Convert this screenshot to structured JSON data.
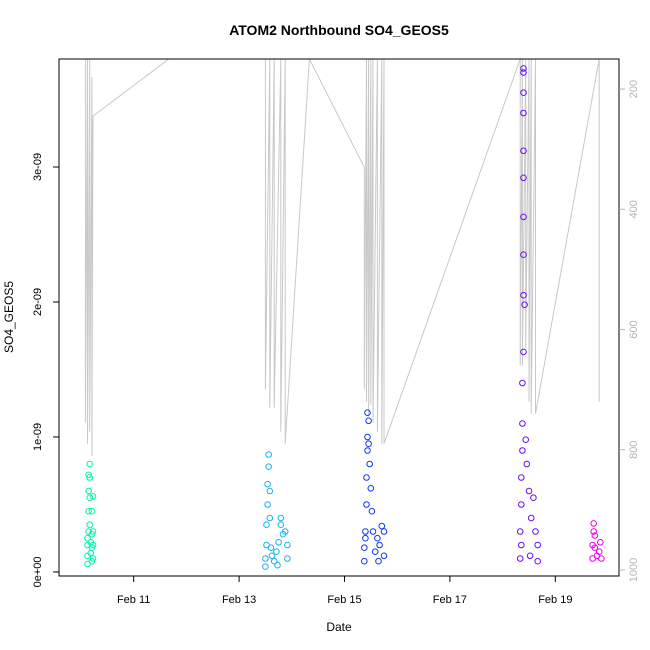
{
  "chart_data": {
    "type": "scatter",
    "title": "ATOM2 Northbound SO4_GEOS5",
    "xlabel": "Date",
    "ylabel": "SO4_GEOS5",
    "x_unit": "days",
    "xlim": [
      "2017-02-09T14:00",
      "2017-02-20T05:00"
    ],
    "ylim": [
      -3e-11,
      3.8e-09
    ],
    "x_ticks": [
      {
        "date": "2017-02-11",
        "label": "Feb 11"
      },
      {
        "date": "2017-02-13",
        "label": "Feb 13"
      },
      {
        "date": "2017-02-15",
        "label": "Feb 15"
      },
      {
        "date": "2017-02-17",
        "label": "Feb 17"
      },
      {
        "date": "2017-02-19",
        "label": "Feb 19"
      }
    ],
    "y_ticks": [
      {
        "value": 0,
        "label": "0e+00"
      },
      {
        "value": 1e-09,
        "label": "1e-09"
      },
      {
        "value": 2e-09,
        "label": "2e-09"
      },
      {
        "value": 3e-09,
        "label": "3e-09"
      }
    ],
    "secondary_axis": {
      "description": "pressure (inverted)",
      "lim": [
        1010,
        150
      ],
      "ticks": [
        {
          "value": 200,
          "label": "200"
        },
        {
          "value": 400,
          "label": "400"
        },
        {
          "value": 600,
          "label": "600"
        },
        {
          "value": 800,
          "label": "800"
        },
        {
          "value": 1000,
          "label": "1000"
        }
      ],
      "color": "#b4b4b4"
    },
    "grid": false,
    "legend": "none",
    "series": [
      {
        "color": "#00f5a8",
        "points": [
          {
            "x": "2017-02-10T03:00",
            "y": 6e-11
          },
          {
            "x": "2017-02-10T03:00",
            "y": 1.2e-10
          },
          {
            "x": "2017-02-10T03:00",
            "y": 2e-10
          },
          {
            "x": "2017-02-10T03:30",
            "y": 3e-10
          },
          {
            "x": "2017-02-10T03:30",
            "y": 4.5e-10
          },
          {
            "x": "2017-02-10T03:30",
            "y": 6e-10
          },
          {
            "x": "2017-02-10T03:30",
            "y": 7.2e-10
          },
          {
            "x": "2017-02-10T04:00",
            "y": 8e-10
          },
          {
            "x": "2017-02-10T04:00",
            "y": 5.5e-10
          },
          {
            "x": "2017-02-10T04:00",
            "y": 3.5e-10
          },
          {
            "x": "2017-02-10T04:30",
            "y": 2.2e-10
          },
          {
            "x": "2017-02-10T04:30",
            "y": 1.4e-10
          },
          {
            "x": "2017-02-10T05:00",
            "y": 1.8e-10
          },
          {
            "x": "2017-02-10T05:00",
            "y": 2.8e-10
          },
          {
            "x": "2017-02-10T05:00",
            "y": 4.5e-10
          },
          {
            "x": "2017-02-10T05:30",
            "y": 5.6e-10
          },
          {
            "x": "2017-02-10T05:30",
            "y": 3e-10
          },
          {
            "x": "2017-02-10T05:30",
            "y": 2e-10
          },
          {
            "x": "2017-02-10T05:30",
            "y": 1e-10
          },
          {
            "x": "2017-02-10T04:00",
            "y": 7e-10
          },
          {
            "x": "2017-02-10T03:00",
            "y": 2.5e-10
          },
          {
            "x": "2017-02-10T05:00",
            "y": 8e-11
          }
        ]
      },
      {
        "color": "#1ab2f0",
        "points": [
          {
            "x": "2017-02-13T12:00",
            "y": 4e-11
          },
          {
            "x": "2017-02-13T12:00",
            "y": 1e-10
          },
          {
            "x": "2017-02-13T12:30",
            "y": 2e-10
          },
          {
            "x": "2017-02-13T12:30",
            "y": 3.5e-10
          },
          {
            "x": "2017-02-13T13:00",
            "y": 5e-10
          },
          {
            "x": "2017-02-13T13:00",
            "y": 6.5e-10
          },
          {
            "x": "2017-02-13T13:30",
            "y": 7.8e-10
          },
          {
            "x": "2017-02-13T13:30",
            "y": 8.7e-10
          },
          {
            "x": "2017-02-13T14:00",
            "y": 6e-10
          },
          {
            "x": "2017-02-13T14:00",
            "y": 4e-10
          },
          {
            "x": "2017-02-13T15:00",
            "y": 1.2e-10
          },
          {
            "x": "2017-02-13T16:00",
            "y": 8e-11
          },
          {
            "x": "2017-02-13T17:00",
            "y": 1.5e-10
          },
          {
            "x": "2017-02-13T18:00",
            "y": 2.2e-10
          },
          {
            "x": "2017-02-13T19:00",
            "y": 3.5e-10
          },
          {
            "x": "2017-02-13T19:00",
            "y": 4e-10
          },
          {
            "x": "2017-02-13T20:00",
            "y": 2.8e-10
          },
          {
            "x": "2017-02-13T21:00",
            "y": 3e-10
          },
          {
            "x": "2017-02-13T22:00",
            "y": 2e-10
          },
          {
            "x": "2017-02-13T22:00",
            "y": 1e-10
          },
          {
            "x": "2017-02-13T14:30",
            "y": 1.8e-10
          },
          {
            "x": "2017-02-13T17:30",
            "y": 5e-11
          }
        ]
      },
      {
        "color": "#1037f5",
        "points": [
          {
            "x": "2017-02-15T09:00",
            "y": 8e-11
          },
          {
            "x": "2017-02-15T09:00",
            "y": 1.8e-10
          },
          {
            "x": "2017-02-15T09:30",
            "y": 3e-10
          },
          {
            "x": "2017-02-15T10:00",
            "y": 5e-10
          },
          {
            "x": "2017-02-15T10:00",
            "y": 7e-10
          },
          {
            "x": "2017-02-15T10:30",
            "y": 9e-10
          },
          {
            "x": "2017-02-15T10:30",
            "y": 1e-09
          },
          {
            "x": "2017-02-15T10:30",
            "y": 1.18e-09
          },
          {
            "x": "2017-02-15T11:00",
            "y": 1.12e-09
          },
          {
            "x": "2017-02-15T11:00",
            "y": 9.5e-10
          },
          {
            "x": "2017-02-15T11:30",
            "y": 8e-10
          },
          {
            "x": "2017-02-15T12:00",
            "y": 6.2e-10
          },
          {
            "x": "2017-02-15T12:30",
            "y": 4.5e-10
          },
          {
            "x": "2017-02-15T13:00",
            "y": 3e-10
          },
          {
            "x": "2017-02-15T14:00",
            "y": 1.5e-10
          },
          {
            "x": "2017-02-15T15:00",
            "y": 2.5e-10
          },
          {
            "x": "2017-02-15T16:00",
            "y": 2e-10
          },
          {
            "x": "2017-02-15T17:00",
            "y": 3.4e-10
          },
          {
            "x": "2017-02-15T18:00",
            "y": 3e-10
          },
          {
            "x": "2017-02-15T18:00",
            "y": 1.2e-10
          },
          {
            "x": "2017-02-15T09:30",
            "y": 2.5e-10
          },
          {
            "x": "2017-02-15T15:30",
            "y": 8e-11
          }
        ]
      },
      {
        "color": "#6a0ff5",
        "points": [
          {
            "x": "2017-02-18T08:00",
            "y": 1e-10
          },
          {
            "x": "2017-02-18T08:00",
            "y": 3e-10
          },
          {
            "x": "2017-02-18T08:30",
            "y": 5e-10
          },
          {
            "x": "2017-02-18T08:30",
            "y": 7e-10
          },
          {
            "x": "2017-02-18T09:00",
            "y": 9e-10
          },
          {
            "x": "2017-02-18T09:00",
            "y": 1.1e-09
          },
          {
            "x": "2017-02-18T09:00",
            "y": 1.4e-09
          },
          {
            "x": "2017-02-18T09:30",
            "y": 1.63e-09
          },
          {
            "x": "2017-02-18T09:30",
            "y": 2.05e-09
          },
          {
            "x": "2017-02-18T09:30",
            "y": 2.35e-09
          },
          {
            "x": "2017-02-18T09:30",
            "y": 2.63e-09
          },
          {
            "x": "2017-02-18T09:30",
            "y": 2.92e-09
          },
          {
            "x": "2017-02-18T09:30",
            "y": 3.12e-09
          },
          {
            "x": "2017-02-18T09:30",
            "y": 3.4e-09
          },
          {
            "x": "2017-02-18T09:30",
            "y": 3.55e-09
          },
          {
            "x": "2017-02-18T09:30",
            "y": 3.7e-09
          },
          {
            "x": "2017-02-18T09:30",
            "y": 3.73e-09
          },
          {
            "x": "2017-02-18T10:00",
            "y": 1.98e-09
          },
          {
            "x": "2017-02-18T10:30",
            "y": 9.8e-10
          },
          {
            "x": "2017-02-18T11:00",
            "y": 8e-10
          },
          {
            "x": "2017-02-18T12:00",
            "y": 6e-10
          },
          {
            "x": "2017-02-18T13:00",
            "y": 4e-10
          },
          {
            "x": "2017-02-18T14:00",
            "y": 5.5e-10
          },
          {
            "x": "2017-02-18T15:00",
            "y": 3e-10
          },
          {
            "x": "2017-02-18T16:00",
            "y": 2e-10
          },
          {
            "x": "2017-02-18T16:00",
            "y": 8e-11
          },
          {
            "x": "2017-02-18T08:30",
            "y": 2e-10
          },
          {
            "x": "2017-02-18T12:30",
            "y": 1.2e-10
          }
        ]
      },
      {
        "color": "#ee00ee",
        "points": [
          {
            "x": "2017-02-19T17:00",
            "y": 1e-10
          },
          {
            "x": "2017-02-19T17:00",
            "y": 2e-10
          },
          {
            "x": "2017-02-19T17:30",
            "y": 3e-10
          },
          {
            "x": "2017-02-19T17:30",
            "y": 3.6e-10
          },
          {
            "x": "2017-02-19T18:00",
            "y": 2.7e-10
          },
          {
            "x": "2017-02-19T18:00",
            "y": 1.8e-10
          },
          {
            "x": "2017-02-19T19:00",
            "y": 1.2e-10
          },
          {
            "x": "2017-02-19T20:00",
            "y": 1.5e-10
          },
          {
            "x": "2017-02-19T20:30",
            "y": 2.2e-10
          },
          {
            "x": "2017-02-19T21:00",
            "y": 1e-10
          }
        ]
      }
    ],
    "pressure_line": {
      "color": "#c8c8c8",
      "points": [
        {
          "x": "2017-02-10T02:00",
          "y": 150
        },
        {
          "x": "2017-02-10T02:00",
          "y": 755
        },
        {
          "x": "2017-02-10T03:00",
          "y": 150
        },
        {
          "x": "2017-02-10T03:00",
          "y": 790
        },
        {
          "x": "2017-02-10T04:00",
          "y": 150
        },
        {
          "x": "2017-02-10T04:00",
          "y": 770
        },
        {
          "x": "2017-02-10T05:00",
          "y": 180
        },
        {
          "x": "2017-02-10T05:00",
          "y": 810
        },
        {
          "x": "2017-02-10T05:30",
          "y": 245
        },
        {
          "x": "2017-02-11T16:00",
          "y": 150
        },
        {
          "x": "2017-02-13T12:00",
          "y": 150
        },
        {
          "x": "2017-02-13T12:00",
          "y": 700
        },
        {
          "x": "2017-02-13T14:00",
          "y": 150
        },
        {
          "x": "2017-02-13T14:00",
          "y": 730
        },
        {
          "x": "2017-02-13T16:00",
          "y": 150
        },
        {
          "x": "2017-02-13T16:00",
          "y": 730
        },
        {
          "x": "2017-02-13T19:00",
          "y": 150
        },
        {
          "x": "2017-02-13T19:00",
          "y": 770
        },
        {
          "x": "2017-02-13T21:00",
          "y": 150
        },
        {
          "x": "2017-02-13T21:00",
          "y": 790
        },
        {
          "x": "2017-02-14T08:00",
          "y": 150
        },
        {
          "x": "2017-02-15T09:00",
          "y": 330
        },
        {
          "x": "2017-02-15T09:00",
          "y": 700
        },
        {
          "x": "2017-02-15T10:00",
          "y": 150
        },
        {
          "x": "2017-02-15T10:00",
          "y": 720
        },
        {
          "x": "2017-02-15T11:00",
          "y": 150
        },
        {
          "x": "2017-02-15T11:00",
          "y": 745
        },
        {
          "x": "2017-02-15T12:00",
          "y": 150
        },
        {
          "x": "2017-02-15T12:00",
          "y": 725
        },
        {
          "x": "2017-02-15T13:00",
          "y": 150
        },
        {
          "x": "2017-02-15T13:00",
          "y": 755
        },
        {
          "x": "2017-02-15T15:00",
          "y": 150
        },
        {
          "x": "2017-02-15T15:00",
          "y": 770
        },
        {
          "x": "2017-02-15T17:00",
          "y": 150
        },
        {
          "x": "2017-02-15T17:00",
          "y": 790
        },
        {
          "x": "2017-02-15T18:00",
          "y": 150
        },
        {
          "x": "2017-02-15T18:00",
          "y": 790
        },
        {
          "x": "2017-02-18T08:00",
          "y": 150
        },
        {
          "x": "2017-02-18T08:00",
          "y": 660
        },
        {
          "x": "2017-02-18T09:00",
          "y": 150
        },
        {
          "x": "2017-02-18T09:00",
          "y": 660
        },
        {
          "x": "2017-02-18T10:30",
          "y": 150
        },
        {
          "x": "2017-02-18T10:30",
          "y": 630
        },
        {
          "x": "2017-02-18T12:00",
          "y": 150
        },
        {
          "x": "2017-02-18T12:00",
          "y": 720
        },
        {
          "x": "2017-02-18T13:00",
          "y": 150
        },
        {
          "x": "2017-02-18T13:00",
          "y": 740
        },
        {
          "x": "2017-02-18T15:00",
          "y": 150
        },
        {
          "x": "2017-02-18T15:00",
          "y": 740
        },
        {
          "x": "2017-02-19T20:00",
          "y": 150
        },
        {
          "x": "2017-02-19T20:00",
          "y": 720
        }
      ]
    }
  }
}
